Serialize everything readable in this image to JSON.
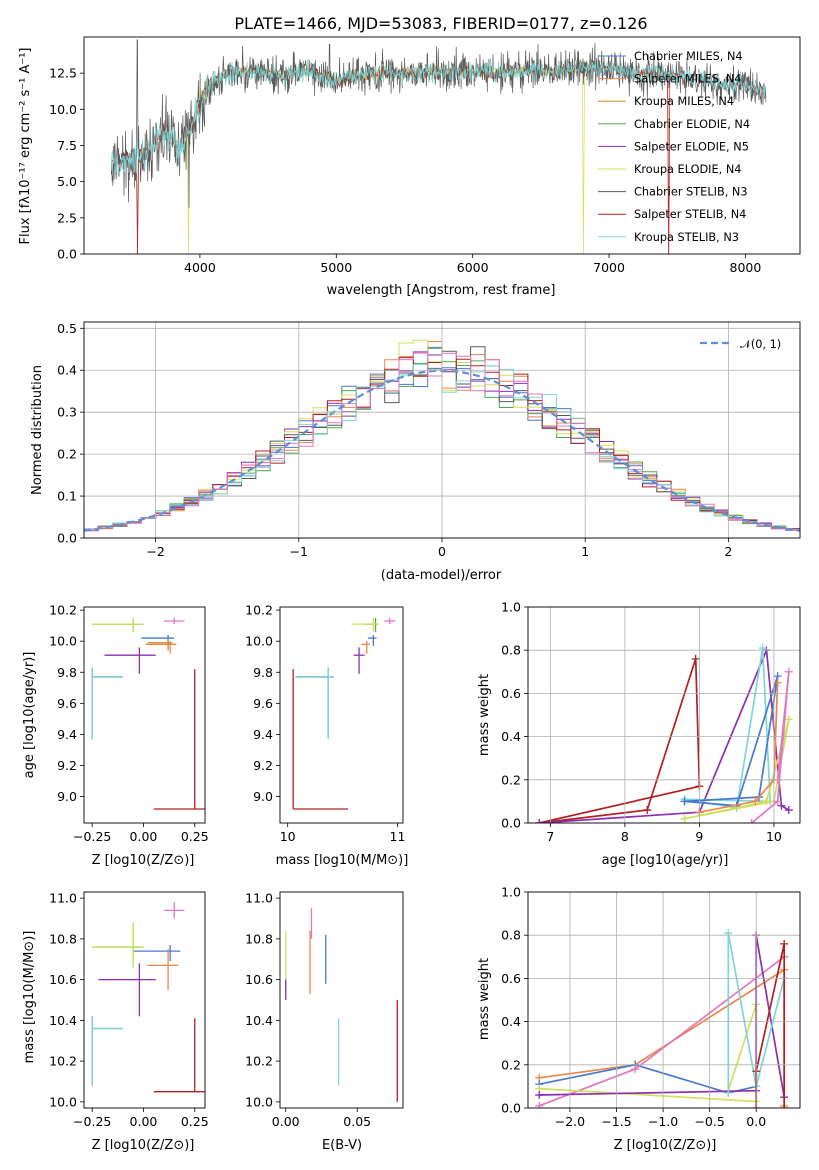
{
  "colors": {
    "Chabrier MILES": "#4878d0",
    "Salpeter MILES": "#ee854a",
    "Kroupa MILES": "#d68b26",
    "Chabrier ELODIE": "#52a352",
    "Salpeter ELODIE": "#8c2fb0",
    "Kroupa ELODIE": "#d2e05a",
    "Chabrier STELIB": "#5a5a5a",
    "Salpeter STELIB": "#b02020",
    "Kroupa STELIB": "#7fd6d6",
    "normal": "#5b8fd6",
    "pink": "#e377c2",
    "orange": "#e8772e"
  },
  "chart_data": [
    {
      "type": "line",
      "title": "PLATE=1466, MJD=53083, FIBERID=0177, z=0.126",
      "xlabel": "wavelength [Angstrom, rest frame]",
      "ylabel": "Flux [fλ10⁻¹⁷ erg cm⁻² s⁻¹ A⁻¹]",
      "xlim": [
        3150,
        8400
      ],
      "ylim": [
        0,
        15
      ],
      "xticks": [
        "4000",
        "5000",
        "6000",
        "7000",
        "8000"
      ],
      "yticks": [
        "0.0",
        "2.5",
        "5.0",
        "7.5",
        "10.0",
        "12.5"
      ],
      "legend_placement": "upper right",
      "legend": [
        "Chabrier MILES, N_SSP=4",
        "Salpeter MILES, N_SSP=4",
        "Kroupa MILES, N_SSP=4",
        "Chabrier ELODIE, N_SSP=4",
        "Salpeter ELODIE, N_SSP=5",
        "Kroupa ELODIE, N_SSP=4",
        "Chabrier STELIB, N_SSP=3",
        "Salpeter STELIB, N_SSP=4",
        "Kroupa STELIB, N_SSP=3"
      ],
      "series_continuum": {
        "x": [
          3350,
          3450,
          3550,
          3650,
          3750,
          3850,
          3950,
          4050,
          4150,
          4250,
          4400,
          4600,
          4800,
          5000,
          5200,
          5400,
          5600,
          5800,
          6000,
          6200,
          6400,
          6600,
          6800,
          7000,
          7200,
          7400,
          7600,
          7800,
          8000,
          8150
        ],
        "y": [
          6.2,
          6.5,
          6.4,
          7.5,
          8.5,
          7.3,
          9.0,
          11.5,
          12.2,
          12.6,
          12.7,
          12.3,
          12.6,
          12.0,
          12.4,
          12.5,
          12.5,
          12.6,
          12.6,
          12.5,
          12.7,
          12.6,
          12.8,
          12.9,
          12.5,
          12.4,
          12.2,
          11.9,
          11.6,
          11.3
        ]
      },
      "grid": false
    },
    {
      "type": "histogram",
      "xlabel": "(data-model)/error",
      "ylabel": "Normed distribution",
      "xlim": [
        -2.5,
        2.5
      ],
      "ylim": [
        0,
        0.515
      ],
      "xticks": [
        "−2",
        "−1",
        "0",
        "1",
        "2"
      ],
      "yticks": [
        "0.0",
        "0.1",
        "0.2",
        "0.3",
        "0.4",
        "0.5"
      ],
      "legend": [
        "𝒩(0, 1)"
      ],
      "legend_placement": "upper right",
      "bin_width": 0.1,
      "reference_curve": "normal(0,1)",
      "grid": true
    },
    {
      "type": "errorbar",
      "xlabel": "Z [log10(Z/Z⊙)]",
      "ylabel": "age  [log10(age/yr)]",
      "xlim": [
        -0.29,
        0.3
      ],
      "ylim": [
        8.83,
        10.22
      ],
      "xticks": [
        "−0.25",
        "0.00",
        "0.25"
      ],
      "yticks": [
        "9.0",
        "9.2",
        "9.4",
        "9.6",
        "9.8",
        "10.0",
        "10.2"
      ],
      "points": [
        {
          "series": "Chabrier MILES",
          "x": 0.12,
          "y": 10.02,
          "xerr": [
            0.13,
            0.03
          ],
          "yerr": [
            0.05,
            0.02
          ]
        },
        {
          "series": "Salpeter MILES",
          "x": 0.13,
          "y": 9.98,
          "xerr": [
            0.12,
            0.03
          ],
          "yerr": [
            0.06,
            0.02
          ]
        },
        {
          "series": "Kroupa MILES",
          "x": 0.12,
          "y": 9.99,
          "xerr": [
            0.1,
            0.02
          ],
          "yerr": [
            0.05,
            0.02
          ]
        },
        {
          "series": "Chabrier ELODIE",
          "x": -0.05,
          "y": 10.11,
          "xerr": [
            0.2,
            0.05
          ],
          "yerr": [
            0.05,
            0.03
          ]
        },
        {
          "series": "Salpeter ELODIE",
          "x": -0.02,
          "y": 9.91,
          "xerr": [
            0.17,
            0.08
          ],
          "yerr": [
            0.12,
            0.05
          ]
        },
        {
          "series": "Kroupa ELODIE",
          "x": -0.05,
          "y": 10.11,
          "xerr": [
            0.2,
            0.05
          ],
          "yerr": [
            0.05,
            0.04
          ]
        },
        {
          "series": "Chabrier STELIB",
          "x": -0.25,
          "y": 9.77,
          "xerr": [
            0.0,
            0.15
          ],
          "yerr": [
            0.4,
            0.06
          ]
        },
        {
          "series": "Salpeter STELIB",
          "x": 0.25,
          "y": 8.92,
          "xerr": [
            0.2,
            0.05
          ],
          "yerr": [
            0.0,
            0.9
          ]
        },
        {
          "series": "Kroupa STELIB",
          "x": -0.25,
          "y": 9.77,
          "xerr": [
            0.0,
            0.15
          ],
          "yerr": [
            0.4,
            0.06
          ]
        },
        {
          "series": "pink",
          "x": 0.15,
          "y": 10.13,
          "xerr": [
            0.05,
            0.05
          ],
          "yerr": [
            0.02,
            0.02
          ]
        }
      ]
    },
    {
      "type": "errorbar",
      "xlabel": "mass [log10(M/M⊙)]",
      "xlim": [
        9.93,
        11.05
      ],
      "ylim": [
        8.83,
        10.22
      ],
      "xticks": [
        "10",
        "11"
      ],
      "yticks": [
        "9.0",
        "9.2",
        "9.4",
        "9.6",
        "9.8",
        "10.0",
        "10.2"
      ],
      "points": [
        {
          "series": "Chabrier MILES",
          "x": 10.78,
          "y": 10.02,
          "xerr": [
            0.05,
            0.03
          ],
          "yerr": [
            0.05,
            0.02
          ]
        },
        {
          "series": "Salpeter MILES",
          "x": 10.72,
          "y": 9.98,
          "xerr": [
            0.05,
            0.03
          ],
          "yerr": [
            0.06,
            0.02
          ]
        },
        {
          "series": "Chabrier ELODIE",
          "x": 10.8,
          "y": 10.11,
          "xerr": [
            0.1,
            0.02
          ],
          "yerr": [
            0.05,
            0.04
          ]
        },
        {
          "series": "Salpeter ELODIE",
          "x": 10.65,
          "y": 9.91,
          "xerr": [
            0.05,
            0.05
          ],
          "yerr": [
            0.12,
            0.05
          ]
        },
        {
          "series": "Kroupa ELODIE",
          "x": 10.78,
          "y": 10.11,
          "xerr": [
            0.2,
            0.05
          ],
          "yerr": [
            0.05,
            0.04
          ]
        },
        {
          "series": "Chabrier STELIB",
          "x": 10.37,
          "y": 9.77,
          "xerr": [
            0.3,
            0.05
          ],
          "yerr": [
            0.4,
            0.06
          ]
        },
        {
          "series": "Salpeter STELIB",
          "x": 10.05,
          "y": 8.92,
          "xerr": [
            0.0,
            0.5
          ],
          "yerr": [
            0.0,
            0.9
          ]
        },
        {
          "series": "Kroupa STELIB",
          "x": 10.37,
          "y": 9.77,
          "xerr": [
            0.3,
            0.05
          ],
          "yerr": [
            0.4,
            0.06
          ]
        },
        {
          "series": "pink",
          "x": 10.93,
          "y": 10.13,
          "xerr": [
            0.05,
            0.05
          ],
          "yerr": [
            0.02,
            0.02
          ]
        }
      ]
    },
    {
      "type": "line",
      "xlabel": "age  [log10(age/yr)]",
      "ylabel": "mass weight",
      "xlim": [
        6.7,
        10.35
      ],
      "ylim": [
        0,
        1.0
      ],
      "xticks": [
        "7",
        "8",
        "9",
        "10"
      ],
      "yticks": [
        "0.0",
        "0.2",
        "0.4",
        "0.6",
        "0.8",
        "1.0"
      ],
      "grid": true,
      "series": [
        {
          "series": "Salpeter STELIB",
          "x": [
            6.85,
            8.3,
            8.95,
            9.0,
            6.85
          ],
          "y": [
            0.0,
            0.06,
            0.76,
            0.17,
            0.0
          ]
        },
        {
          "series": "Salpeter ELODIE",
          "x": [
            6.85,
            9.0,
            9.9,
            10.1,
            10.2
          ],
          "y": [
            0.0,
            0.05,
            0.8,
            0.08,
            0.06
          ]
        },
        {
          "series": "Kroupa STELIB",
          "x": [
            8.8,
            9.5,
            9.85,
            9.95,
            8.8
          ],
          "y": [
            0.11,
            0.07,
            0.81,
            0.1,
            0.11
          ]
        },
        {
          "series": "Chabrier MILES",
          "x": [
            8.8,
            9.8,
            10.05,
            9.5,
            8.8
          ],
          "y": [
            0.1,
            0.12,
            0.68,
            0.08,
            0.1
          ]
        },
        {
          "series": "Kroupa ELODIE",
          "x": [
            8.8,
            9.9,
            10.2,
            10.0,
            8.8
          ],
          "y": [
            0.02,
            0.1,
            0.48,
            0.1,
            0.02
          ]
        },
        {
          "series": "pink",
          "x": [
            9.7,
            10.05,
            10.2,
            10.05
          ],
          "y": [
            0.0,
            0.1,
            0.7,
            0.2
          ]
        },
        {
          "series": "Salpeter MILES",
          "x": [
            9.0,
            9.75,
            10.0,
            10.05
          ],
          "y": [
            0.05,
            0.1,
            0.2,
            0.65
          ]
        }
      ]
    },
    {
      "type": "errorbar",
      "xlabel": "Z [log10(Z/Z⊙)]",
      "ylabel": "mass [log10(M/M⊙)]",
      "xlim": [
        -0.29,
        0.3
      ],
      "ylim": [
        9.97,
        11.03
      ],
      "xticks": [
        "−0.25",
        "0.00",
        "0.25"
      ],
      "yticks": [
        "10.0",
        "10.2",
        "10.4",
        "10.6",
        "10.8",
        "11.0"
      ],
      "points": [
        {
          "series": "Chabrier MILES",
          "x": 0.13,
          "y": 10.74,
          "xerr": [
            0.18,
            0.05
          ],
          "yerr": [
            0.05,
            0.03
          ]
        },
        {
          "series": "Salpeter MILES",
          "x": 0.12,
          "y": 10.67,
          "xerr": [
            0.1,
            0.05
          ],
          "yerr": [
            0.12,
            0.08
          ]
        },
        {
          "series": "Chabrier ELODIE",
          "x": -0.05,
          "y": 10.76,
          "xerr": [
            0.2,
            0.05
          ],
          "yerr": [
            0.1,
            0.12
          ]
        },
        {
          "series": "Salpeter ELODIE",
          "x": -0.02,
          "y": 10.6,
          "xerr": [
            0.2,
            0.08
          ],
          "yerr": [
            0.18,
            0.08
          ]
        },
        {
          "series": "Kroupa ELODIE",
          "x": -0.05,
          "y": 10.76,
          "xerr": [
            0.2,
            0.05
          ],
          "yerr": [
            0.1,
            0.12
          ]
        },
        {
          "series": "Chabrier STELIB",
          "x": -0.25,
          "y": 10.36,
          "xerr": [
            0.0,
            0.15
          ],
          "yerr": [
            0.28,
            0.06
          ]
        },
        {
          "series": "Salpeter STELIB",
          "x": 0.25,
          "y": 10.05,
          "xerr": [
            0.2,
            0.05
          ],
          "yerr": [
            0.0,
            0.36
          ]
        },
        {
          "series": "Kroupa STELIB",
          "x": -0.25,
          "y": 10.36,
          "xerr": [
            0.0,
            0.15
          ],
          "yerr": [
            0.28,
            0.06
          ]
        },
        {
          "series": "pink",
          "x": 0.15,
          "y": 10.94,
          "xerr": [
            0.05,
            0.05
          ],
          "yerr": [
            0.04,
            0.04
          ]
        }
      ]
    },
    {
      "type": "errorbar",
      "xlabel": "E(B-V)",
      "xlim": [
        -0.004,
        0.082
      ],
      "ylim": [
        9.97,
        11.03
      ],
      "xticks": [
        "0.00",
        "0.05"
      ],
      "yticks": [
        "10.0",
        "10.2",
        "10.4",
        "10.6",
        "10.8",
        "11.0"
      ],
      "points": [
        {
          "series": "Kroupa ELODIE",
          "x": 0.0,
          "y": 10.7,
          "xerr": [
            0,
            0
          ],
          "yerr": [
            0.18,
            0.14
          ]
        },
        {
          "series": "Salpeter ELODIE",
          "x": 0.0,
          "y": 10.55,
          "xerr": [
            0,
            0
          ],
          "yerr": [
            0.05,
            0.05
          ]
        },
        {
          "series": "Salpeter MILES",
          "x": 0.017,
          "y": 10.7,
          "xerr": [
            0,
            0
          ],
          "yerr": [
            0.17,
            0.14
          ]
        },
        {
          "series": "pink",
          "x": 0.018,
          "y": 10.85,
          "xerr": [
            0,
            0
          ],
          "yerr": [
            0.05,
            0.1
          ]
        },
        {
          "series": "Chabrier MILES",
          "x": 0.028,
          "y": 10.7,
          "xerr": [
            0,
            0
          ],
          "yerr": [
            0.12,
            0.12
          ]
        },
        {
          "series": "Kroupa STELIB",
          "x": 0.037,
          "y": 10.25,
          "xerr": [
            0,
            0
          ],
          "yerr": [
            0.17,
            0.16
          ]
        },
        {
          "series": "Salpeter STELIB",
          "x": 0.078,
          "y": 10.25,
          "xerr": [
            0,
            0
          ],
          "yerr": [
            0.25,
            0.25
          ]
        }
      ]
    },
    {
      "type": "line",
      "xlabel": "Z [log10(Z/Z⊙)]",
      "ylabel": "mass weight",
      "xlim": [
        -2.45,
        0.47
      ],
      "ylim": [
        0,
        1.0
      ],
      "xticks": [
        "−2.0",
        "−1.5",
        "−1.0",
        "−0.5",
        "0.0"
      ],
      "yticks": [
        "0.0",
        "0.2",
        "0.4",
        "0.6",
        "0.8",
        "1.0"
      ],
      "grid": true,
      "series": [
        {
          "series": "Salpeter MILES",
          "x": [
            -2.33,
            -1.3,
            0.3,
            0.3
          ],
          "y": [
            0.14,
            0.2,
            0.64,
            0.01
          ]
        },
        {
          "series": "Chabrier MILES",
          "x": [
            -2.33,
            -1.3,
            -0.3,
            0.0
          ],
          "y": [
            0.11,
            0.2,
            0.07,
            0.1
          ]
        },
        {
          "series": "pink",
          "x": [
            -2.33,
            -1.3,
            0.3
          ],
          "y": [
            0.01,
            0.18,
            0.7
          ]
        },
        {
          "series": "Kroupa ELODIE",
          "x": [
            -2.33,
            0.0,
            0.0,
            -0.3
          ],
          "y": [
            0.09,
            0.03,
            0.48,
            0.08
          ]
        },
        {
          "series": "Salpeter ELODIE",
          "x": [
            -2.33,
            0.0,
            0.0,
            0.3
          ],
          "y": [
            0.06,
            0.08,
            0.8,
            0.05
          ]
        },
        {
          "series": "Kroupa STELIB",
          "x": [
            -0.3,
            -0.3,
            0.0,
            0.3
          ],
          "y": [
            0.07,
            0.81,
            0.1,
            0.6
          ]
        },
        {
          "series": "Salpeter STELIB",
          "x": [
            0.0,
            0.0,
            0.3,
            0.3
          ],
          "y": [
            0.0,
            0.17,
            0.76,
            0.0
          ]
        }
      ]
    }
  ]
}
